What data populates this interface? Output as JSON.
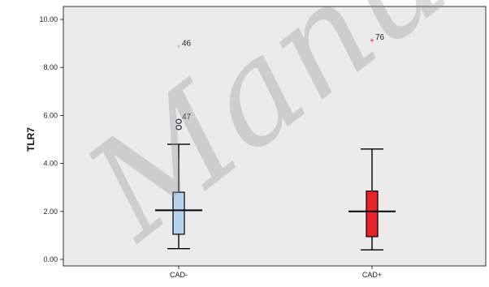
{
  "chart_data": {
    "type": "box",
    "ylabel": "TLR7",
    "ylim": [
      0,
      10
    ],
    "yticks": [
      "0.00",
      "2.00",
      "4.00",
      "6.00",
      "8.00",
      "10.00"
    ],
    "categories": [
      "CAD-",
      "CAD+"
    ],
    "boxes": [
      {
        "category": "CAD-",
        "whisker_low": 0.45,
        "q1": 1.05,
        "median": 2.05,
        "q3": 2.8,
        "whisker_high": 4.8,
        "color": "#b4d4ee",
        "outliers": [
          {
            "value": 5.5,
            "marker": "circle",
            "label": ""
          },
          {
            "value": 5.75,
            "marker": "circle",
            "label": "47"
          },
          {
            "value": 8.8,
            "marker": "star",
            "label": "46"
          }
        ]
      },
      {
        "category": "CAD+",
        "whisker_low": 0.4,
        "q1": 0.95,
        "median": 2.0,
        "q3": 2.85,
        "whisker_high": 4.6,
        "color": "#e8222b",
        "outliers": [
          {
            "value": 9.05,
            "marker": "star",
            "label": "76"
          }
        ]
      }
    ],
    "grid": false
  },
  "watermark_text": "Manuscript",
  "colors": {
    "plot_background": "#ebebeb",
    "axis": "#333333",
    "star_blue": "#9fc4e6",
    "star_red": "#e03040"
  }
}
